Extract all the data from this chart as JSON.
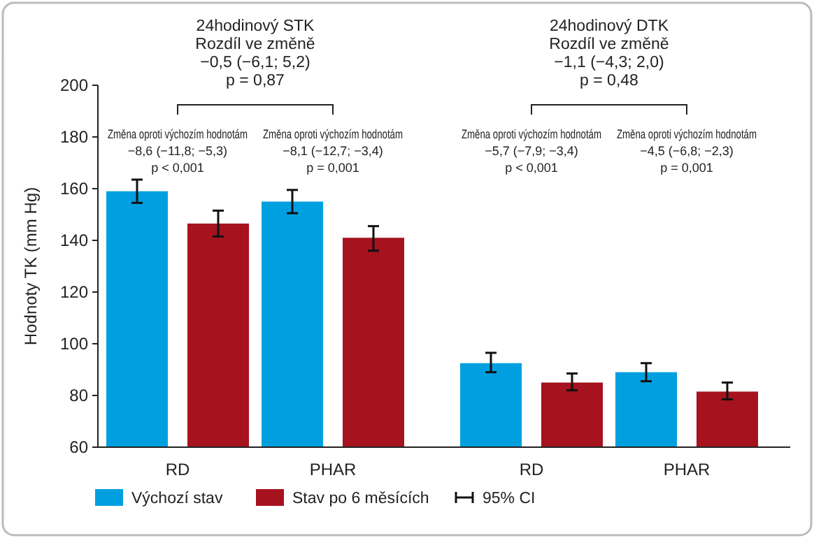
{
  "chart_data": {
    "type": "bar",
    "ylabel": "Hodnoty TK (mm Hg)",
    "categories": [
      "RD",
      "PHAR",
      "RD",
      "PHAR"
    ],
    "ylim": [
      60,
      200
    ],
    "yticks": [
      60,
      80,
      100,
      120,
      140,
      160,
      180,
      200
    ],
    "grid": false,
    "legend": "bottom",
    "series": [
      {
        "name": "Výchozí stav",
        "color": "#009fe0",
        "values": [
          159,
          155,
          92.5,
          89
        ],
        "errors": [
          [
            154.5,
            163.5
          ],
          [
            150.5,
            159.5
          ],
          [
            89,
            96.5
          ],
          [
            85.5,
            92.5
          ]
        ]
      },
      {
        "name": "Stav po 6 měsících",
        "color": "#a6121e",
        "values": [
          146.5,
          141,
          85,
          81.5
        ],
        "errors": [
          [
            141.5,
            151.5
          ],
          [
            136,
            145.5
          ],
          [
            82,
            88.5
          ],
          [
            78.5,
            85
          ]
        ]
      }
    ],
    "annotations": [
      "24hodinový STK\nRozdíl ve změně\n−0,5 (−6,1; 5,2)\np = 0,87",
      "24hodinový DTK\nRozdíl ve změně\n−1,1 (−4,3; 2,0)\np = 0,48",
      "Změna oproti výchozím hodnotám\n−8,6 (−11,8; −5,3)\np < 0,001",
      "Změna oproti výchozím hodnotám\n−8,1 (−12,7; −3,4)\np = 0,001",
      "Změna oproti výchozím hodnotám\n−5,7 (−7,9; −3,4)\np < 0,001",
      "Změna oproti výchozím hodnotám\n−4,5 (−6,8; −2,3)\np = 0,001",
      "95% CI"
    ]
  }
}
